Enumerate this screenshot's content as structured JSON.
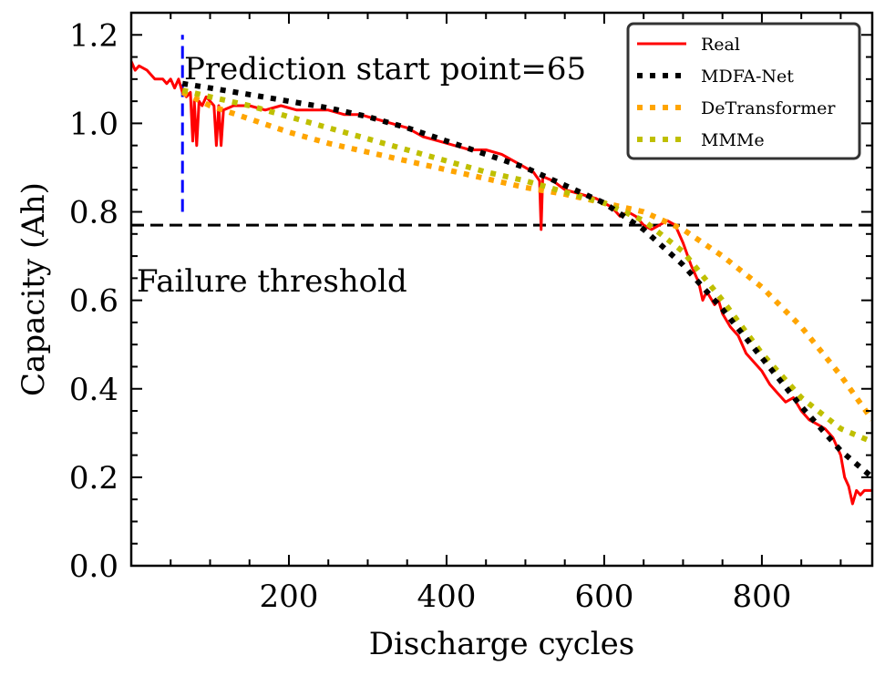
{
  "chart_data": {
    "type": "line",
    "title": "",
    "xlabel": "Discharge cycles",
    "ylabel": "Capacity (Ah)",
    "xlim": [
      0,
      940
    ],
    "ylim": [
      0.0,
      1.25
    ],
    "xticks": [
      200,
      400,
      600,
      800
    ],
    "xtick_labels": [
      "200",
      "400",
      "600",
      "800"
    ],
    "yticks": [
      0.0,
      0.2,
      0.4,
      0.6,
      0.8,
      1.0,
      1.2
    ],
    "ytick_labels": [
      "0.0",
      "0.2",
      "0.4",
      "0.6",
      "0.8",
      "1.0",
      "1.2"
    ],
    "grid": false,
    "legend_position": "top-right",
    "failure_threshold": {
      "value": 0.77,
      "label": "Failure threshold",
      "color": "#000000"
    },
    "prediction_start": {
      "x": 65,
      "y_range": [
        0.8,
        1.2
      ],
      "label": "Prediction start point=65",
      "color": "#0000ff"
    },
    "series": [
      {
        "name": "Real",
        "color": "#ff0000",
        "style": "solid",
        "points": [
          [
            0,
            1.14
          ],
          [
            5,
            1.12
          ],
          [
            10,
            1.13
          ],
          [
            20,
            1.12
          ],
          [
            30,
            1.1
          ],
          [
            40,
            1.1
          ],
          [
            45,
            1.09
          ],
          [
            50,
            1.1
          ],
          [
            55,
            1.08
          ],
          [
            60,
            1.1
          ],
          [
            65,
            1.07
          ],
          [
            70,
            1.06
          ],
          [
            75,
            1.07
          ],
          [
            78,
            0.96
          ],
          [
            80,
            1.05
          ],
          [
            83,
            0.95
          ],
          [
            86,
            1.05
          ],
          [
            90,
            1.04
          ],
          [
            95,
            1.06
          ],
          [
            100,
            1.05
          ],
          [
            105,
            1.04
          ],
          [
            108,
            0.95
          ],
          [
            111,
            1.04
          ],
          [
            114,
            0.95
          ],
          [
            117,
            1.03
          ],
          [
            130,
            1.04
          ],
          [
            150,
            1.04
          ],
          [
            170,
            1.03
          ],
          [
            190,
            1.04
          ],
          [
            210,
            1.03
          ],
          [
            230,
            1.03
          ],
          [
            250,
            1.03
          ],
          [
            270,
            1.02
          ],
          [
            290,
            1.02
          ],
          [
            310,
            1.01
          ],
          [
            330,
            1.0
          ],
          [
            350,
            0.99
          ],
          [
            370,
            0.97
          ],
          [
            390,
            0.96
          ],
          [
            410,
            0.95
          ],
          [
            430,
            0.94
          ],
          [
            450,
            0.94
          ],
          [
            470,
            0.93
          ],
          [
            490,
            0.91
          ],
          [
            510,
            0.89
          ],
          [
            518,
            0.87
          ],
          [
            520,
            0.76
          ],
          [
            522,
            0.88
          ],
          [
            535,
            0.87
          ],
          [
            550,
            0.85
          ],
          [
            570,
            0.84
          ],
          [
            590,
            0.83
          ],
          [
            600,
            0.82
          ],
          [
            610,
            0.81
          ],
          [
            620,
            0.79
          ],
          [
            630,
            0.8
          ],
          [
            640,
            0.79
          ],
          [
            650,
            0.77
          ],
          [
            660,
            0.76
          ],
          [
            670,
            0.77
          ],
          [
            680,
            0.78
          ],
          [
            690,
            0.77
          ],
          [
            700,
            0.73
          ],
          [
            710,
            0.68
          ],
          [
            720,
            0.64
          ],
          [
            725,
            0.6
          ],
          [
            730,
            0.62
          ],
          [
            740,
            0.59
          ],
          [
            745,
            0.6
          ],
          [
            750,
            0.57
          ],
          [
            760,
            0.54
          ],
          [
            770,
            0.52
          ],
          [
            780,
            0.48
          ],
          [
            790,
            0.46
          ],
          [
            800,
            0.44
          ],
          [
            810,
            0.41
          ],
          [
            820,
            0.39
          ],
          [
            830,
            0.37
          ],
          [
            840,
            0.38
          ],
          [
            850,
            0.35
          ],
          [
            860,
            0.33
          ],
          [
            870,
            0.32
          ],
          [
            880,
            0.31
          ],
          [
            890,
            0.29
          ],
          [
            900,
            0.25
          ],
          [
            905,
            0.2
          ],
          [
            910,
            0.18
          ],
          [
            915,
            0.14
          ],
          [
            920,
            0.17
          ],
          [
            925,
            0.16
          ],
          [
            930,
            0.17
          ],
          [
            940,
            0.17
          ]
        ]
      },
      {
        "name": "MDFA-Net",
        "color": "#000000",
        "style": "dotted",
        "points": [
          [
            65,
            1.09
          ],
          [
            100,
            1.08
          ],
          [
            150,
            1.065
          ],
          [
            200,
            1.05
          ],
          [
            250,
            1.035
          ],
          [
            300,
            1.015
          ],
          [
            350,
            0.99
          ],
          [
            400,
            0.96
          ],
          [
            450,
            0.93
          ],
          [
            500,
            0.9
          ],
          [
            550,
            0.86
          ],
          [
            600,
            0.82
          ],
          [
            650,
            0.76
          ],
          [
            700,
            0.68
          ],
          [
            750,
            0.58
          ],
          [
            800,
            0.47
          ],
          [
            850,
            0.36
          ],
          [
            900,
            0.26
          ],
          [
            940,
            0.2
          ]
        ]
      },
      {
        "name": "DeTransformer",
        "color": "#ffa500",
        "style": "dotted",
        "points": [
          [
            65,
            1.07
          ],
          [
            100,
            1.04
          ],
          [
            150,
            1.01
          ],
          [
            200,
            0.98
          ],
          [
            250,
            0.955
          ],
          [
            300,
            0.935
          ],
          [
            350,
            0.915
          ],
          [
            400,
            0.895
          ],
          [
            450,
            0.875
          ],
          [
            500,
            0.855
          ],
          [
            550,
            0.84
          ],
          [
            600,
            0.82
          ],
          [
            650,
            0.8
          ],
          [
            700,
            0.76
          ],
          [
            750,
            0.7
          ],
          [
            800,
            0.63
          ],
          [
            850,
            0.54
          ],
          [
            900,
            0.43
          ],
          [
            940,
            0.33
          ]
        ]
      },
      {
        "name": "MMMe",
        "color": "#bfbf00",
        "style": "dotted",
        "points": [
          [
            65,
            1.075
          ],
          [
            100,
            1.06
          ],
          [
            150,
            1.04
          ],
          [
            200,
            1.015
          ],
          [
            250,
            0.99
          ],
          [
            300,
            0.965
          ],
          [
            350,
            0.94
          ],
          [
            400,
            0.915
          ],
          [
            450,
            0.89
          ],
          [
            500,
            0.87
          ],
          [
            550,
            0.845
          ],
          [
            600,
            0.82
          ],
          [
            650,
            0.78
          ],
          [
            700,
            0.71
          ],
          [
            750,
            0.6
          ],
          [
            800,
            0.48
          ],
          [
            850,
            0.38
          ],
          [
            900,
            0.31
          ],
          [
            940,
            0.28
          ]
        ]
      }
    ]
  }
}
